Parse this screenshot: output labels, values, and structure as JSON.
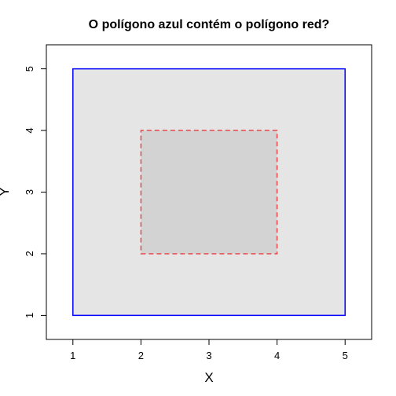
{
  "chart_data": {
    "type": "polygon",
    "title": "O polígono azul contém o polígono red?",
    "xlabel": "X",
    "ylabel": "Y",
    "xlim": [
      0.61,
      5.39
    ],
    "ylim": [
      0.61,
      5.39
    ],
    "xticks": [
      1,
      2,
      3,
      4,
      5
    ],
    "yticks": [
      1,
      2,
      3,
      4,
      5
    ],
    "grid": false,
    "polygons": [
      {
        "color": "blue",
        "stroke": "#0000ff",
        "fill": "#e5e5e5",
        "line_style": "solid",
        "points": [
          [
            1,
            1
          ],
          [
            5,
            1
          ],
          [
            5,
            5
          ],
          [
            1,
            5
          ]
        ]
      },
      {
        "color": "red",
        "stroke": "#e8474b",
        "fill": "#d3d3d3",
        "line_style": "dashed",
        "points": [
          [
            2,
            2
          ],
          [
            4,
            2
          ],
          [
            4,
            4
          ],
          [
            2,
            4
          ]
        ]
      }
    ]
  }
}
